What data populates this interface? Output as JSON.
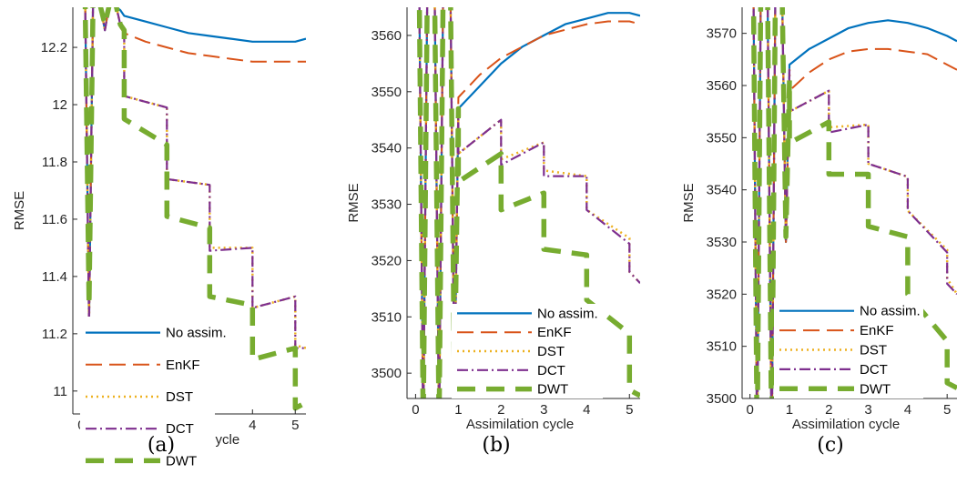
{
  "series_styles": {
    "No assim.": {
      "color": "#0072BD",
      "dash": "",
      "width": 2.2
    },
    "EnKF": {
      "color": "#D95319",
      "dash": "18 8",
      "width": 2
    },
    "DST": {
      "color": "#EDB120",
      "dash": "2 4",
      "width": 2.5
    },
    "DCT": {
      "color": "#7E2F8E",
      "dash": "12 4 2 4",
      "width": 2.2
    },
    "DWT": {
      "color": "#77AC30",
      "dash": "20 12",
      "width": 5.5
    }
  },
  "chart_data": [
    {
      "type": "line",
      "panel_label": "(a)",
      "xlabel": "Assimilation cycle",
      "ylabel": "RMSE",
      "xlim": [
        -0.2,
        5.25
      ],
      "ylim": [
        10.92,
        12.34
      ],
      "xticks": [
        0,
        1,
        2,
        3,
        4,
        5
      ],
      "yticks": [
        11,
        11.2,
        11.4,
        11.6,
        11.8,
        12,
        12.2
      ],
      "ytick_labels": [
        "11",
        "11.2",
        "11.4",
        "11.6",
        "11.8",
        "12",
        "12.2"
      ],
      "legend": "bottom-left",
      "series": [
        {
          "name": "No assim.",
          "x": [
            0,
            0.09,
            0.18,
            0.27,
            0.36,
            0.45,
            0.55,
            0.64,
            0.73,
            0.82,
            0.91,
            1.0,
            1.5,
            2.0,
            2.5,
            3.0,
            3.5,
            4.0,
            4.5,
            5.0,
            5.25
          ],
          "y": [
            12.6,
            12.34,
            11.24,
            12.34,
            12.6,
            12.34,
            12.26,
            12.34,
            12.6,
            12.34,
            12.33,
            12.31,
            12.29,
            12.27,
            12.25,
            12.24,
            12.23,
            12.22,
            12.22,
            12.22,
            12.23
          ]
        },
        {
          "name": "EnKF",
          "x": [
            0,
            0.09,
            0.18,
            0.27,
            0.36,
            0.45,
            0.55,
            0.64,
            0.73,
            0.82,
            0.91,
            1.0,
            1.5,
            2.0,
            2.5,
            3.0,
            3.5,
            4.0,
            4.5,
            5.0,
            5.25
          ],
          "y": [
            12.6,
            12.34,
            11.24,
            12.34,
            12.6,
            12.34,
            12.26,
            12.34,
            12.6,
            12.34,
            12.27,
            12.25,
            12.22,
            12.2,
            12.18,
            12.17,
            12.16,
            12.15,
            12.15,
            12.15,
            12.15
          ]
        },
        {
          "name": "DST",
          "x": [
            0,
            0.09,
            0.18,
            0.27,
            0.36,
            0.45,
            0.55,
            0.64,
            0.73,
            0.82,
            0.91,
            1.0,
            1.0,
            2.0,
            2.0,
            3.0,
            3.0,
            4.0,
            4.0,
            5.0,
            5.0,
            5.25
          ],
          "y": [
            12.6,
            12.34,
            11.24,
            12.34,
            12.6,
            12.34,
            12.26,
            12.34,
            12.6,
            12.34,
            12.28,
            12.26,
            12.03,
            11.99,
            11.74,
            11.72,
            11.5,
            11.5,
            11.29,
            11.33,
            11.16,
            11.15
          ]
        },
        {
          "name": "DCT",
          "x": [
            0,
            0.09,
            0.18,
            0.27,
            0.36,
            0.45,
            0.55,
            0.64,
            0.73,
            0.82,
            0.91,
            1.0,
            1.0,
            2.0,
            2.0,
            3.0,
            3.0,
            4.0,
            4.0,
            5.0,
            5.0,
            5.25
          ],
          "y": [
            12.6,
            12.34,
            11.23,
            12.34,
            12.6,
            12.34,
            12.26,
            12.34,
            12.6,
            12.34,
            12.28,
            12.26,
            12.03,
            11.99,
            11.74,
            11.72,
            11.49,
            11.5,
            11.29,
            11.33,
            11.15,
            11.15
          ]
        },
        {
          "name": "DWT",
          "x": [
            0,
            0.09,
            0.18,
            0.27,
            0.36,
            0.45,
            0.55,
            0.64,
            0.73,
            0.82,
            0.91,
            1.0,
            1.0,
            2.0,
            2.0,
            3.0,
            3.0,
            4.0,
            4.0,
            5.0,
            5.0,
            5.25
          ],
          "y": [
            12.6,
            12.34,
            11.3,
            12.34,
            12.6,
            12.34,
            12.28,
            12.34,
            12.6,
            12.34,
            12.28,
            12.26,
            11.95,
            11.86,
            11.61,
            11.57,
            11.33,
            11.3,
            11.11,
            11.15,
            10.94,
            10.96
          ]
        }
      ]
    },
    {
      "type": "line",
      "panel_label": "(b)",
      "xlabel": "Assimilation cycle",
      "ylabel": "RMSE",
      "xlim": [
        -0.2,
        5.25
      ],
      "ylim": [
        3495.5,
        3565
      ],
      "xticks": [
        0,
        1,
        2,
        3,
        4,
        5
      ],
      "yticks": [
        3500,
        3510,
        3520,
        3530,
        3540,
        3550,
        3560
      ],
      "ytick_labels": [
        "3500",
        "3510",
        "3520",
        "3530",
        "3540",
        "3550",
        "3560"
      ],
      "legend": "bottom-right",
      "series": [
        {
          "name": "No assim.",
          "x": [
            0,
            0.09,
            0.18,
            0.27,
            0.36,
            0.45,
            0.55,
            0.64,
            0.73,
            0.82,
            0.91,
            1.0,
            1.5,
            2.0,
            2.5,
            3.0,
            3.5,
            4.0,
            4.5,
            5.0,
            5.25
          ],
          "y": [
            3580,
            3565,
            3490,
            3565,
            3580,
            3565,
            3490,
            3565,
            3580,
            3565,
            3496,
            3547,
            3551,
            3555,
            3558,
            3560,
            3562,
            3563,
            3564,
            3564,
            3563.5
          ]
        },
        {
          "name": "EnKF",
          "x": [
            0,
            0.09,
            0.18,
            0.27,
            0.36,
            0.45,
            0.55,
            0.64,
            0.73,
            0.82,
            0.91,
            1.0,
            1.5,
            2.0,
            2.5,
            3.0,
            3.5,
            4.0,
            4.5,
            5.0,
            5.25
          ],
          "y": [
            3580,
            3565,
            3490,
            3565,
            3580,
            3565,
            3490,
            3565,
            3580,
            3565,
            3496,
            3549,
            3553,
            3556,
            3558,
            3560,
            3561,
            3562,
            3562.5,
            3562.5,
            3562
          ]
        },
        {
          "name": "DST",
          "x": [
            0,
            0.09,
            0.18,
            0.27,
            0.36,
            0.45,
            0.55,
            0.64,
            0.73,
            0.82,
            0.91,
            1.0,
            1.0,
            2.0,
            2.0,
            3.0,
            3.0,
            4.0,
            4.0,
            5.0,
            5.0,
            5.25
          ],
          "y": [
            3580,
            3565,
            3490,
            3565,
            3580,
            3565,
            3490,
            3565,
            3580,
            3565,
            3496,
            3547,
            3539,
            3545,
            3538,
            3541,
            3536,
            3535,
            3529,
            3524,
            3518,
            3516
          ]
        },
        {
          "name": "DCT",
          "x": [
            0,
            0.09,
            0.18,
            0.27,
            0.36,
            0.45,
            0.55,
            0.64,
            0.73,
            0.82,
            0.91,
            1.0,
            1.0,
            2.0,
            2.0,
            3.0,
            3.0,
            4.0,
            4.0,
            5.0,
            5.0,
            5.25
          ],
          "y": [
            3580,
            3565,
            3490,
            3565,
            3580,
            3565,
            3490,
            3565,
            3580,
            3565,
            3496,
            3547,
            3539,
            3545,
            3537,
            3541,
            3535,
            3535,
            3529,
            3523,
            3518,
            3516
          ]
        },
        {
          "name": "DWT",
          "x": [
            0,
            0.09,
            0.18,
            0.27,
            0.36,
            0.45,
            0.55,
            0.64,
            0.73,
            0.82,
            0.91,
            1.0,
            1.0,
            2.0,
            2.0,
            3.0,
            3.0,
            4.0,
            4.0,
            5.0,
            5.0,
            5.25
          ],
          "y": [
            3580,
            3565,
            3490,
            3565,
            3580,
            3565,
            3490,
            3565,
            3580,
            3565,
            3497,
            3547,
            3534,
            3539,
            3529,
            3532,
            3522,
            3521,
            3513,
            3507,
            3497,
            3496
          ]
        }
      ]
    },
    {
      "type": "line",
      "panel_label": "(c)",
      "xlabel": "Assimilation cycle",
      "ylabel": "RMSE",
      "xlim": [
        -0.2,
        5.25
      ],
      "ylim": [
        3500,
        3575
      ],
      "xticks": [
        0,
        1,
        2,
        3,
        4,
        5
      ],
      "yticks": [
        3500,
        3510,
        3520,
        3530,
        3540,
        3550,
        3560,
        3570
      ],
      "ytick_labels": [
        "3500",
        "3510",
        "3520",
        "3530",
        "3540",
        "3550",
        "3560",
        "3570"
      ],
      "legend": "bottom-right",
      "series": [
        {
          "name": "No assim.",
          "x": [
            0,
            0.09,
            0.18,
            0.27,
            0.36,
            0.45,
            0.55,
            0.64,
            0.73,
            0.82,
            0.91,
            1.0,
            1.5,
            2.0,
            2.5,
            3.0,
            3.5,
            4.0,
            4.5,
            5.0,
            5.25
          ],
          "y": [
            3590,
            3575,
            3490,
            3575,
            3590,
            3575,
            3490,
            3575,
            3590,
            3575,
            3530,
            3564,
            3567,
            3569,
            3571,
            3572,
            3572.5,
            3572,
            3571,
            3569.5,
            3568.5
          ]
        },
        {
          "name": "EnKF",
          "x": [
            0,
            0.09,
            0.18,
            0.27,
            0.36,
            0.45,
            0.55,
            0.64,
            0.73,
            0.82,
            0.91,
            1.0,
            1.5,
            2.0,
            2.5,
            3.0,
            3.5,
            4.0,
            4.5,
            5.0,
            5.25
          ],
          "y": [
            3590,
            3575,
            3490,
            3575,
            3590,
            3575,
            3490,
            3575,
            3590,
            3575,
            3530,
            3559,
            3562.5,
            3565,
            3566.5,
            3567,
            3567,
            3566.5,
            3566,
            3564,
            3563
          ]
        },
        {
          "name": "DST",
          "x": [
            0,
            0.09,
            0.18,
            0.27,
            0.36,
            0.45,
            0.55,
            0.64,
            0.73,
            0.82,
            0.91,
            1.0,
            1.0,
            2.0,
            2.0,
            3.0,
            3.0,
            4.0,
            4.0,
            5.0,
            5.0,
            5.25
          ],
          "y": [
            3590,
            3575,
            3490,
            3575,
            3590,
            3575,
            3490,
            3575,
            3590,
            3575,
            3530,
            3563,
            3555,
            3559,
            3552,
            3552.5,
            3545,
            3542.5,
            3536,
            3528.5,
            3523,
            3520
          ]
        },
        {
          "name": "DCT",
          "x": [
            0,
            0.09,
            0.18,
            0.27,
            0.36,
            0.45,
            0.55,
            0.64,
            0.73,
            0.82,
            0.91,
            1.0,
            1.0,
            2.0,
            2.0,
            3.0,
            3.0,
            4.0,
            4.0,
            5.0,
            5.0,
            5.25
          ],
          "y": [
            3590,
            3575,
            3490,
            3575,
            3590,
            3575,
            3490,
            3575,
            3590,
            3575,
            3530,
            3563,
            3555,
            3559,
            3551,
            3552.5,
            3545,
            3542.5,
            3536,
            3528,
            3522,
            3520
          ]
        },
        {
          "name": "DWT",
          "x": [
            0,
            0.09,
            0.18,
            0.27,
            0.36,
            0.45,
            0.55,
            0.64,
            0.73,
            0.82,
            0.91,
            1.0,
            1.0,
            2.0,
            2.0,
            3.0,
            3.0,
            4.0,
            4.0,
            5.0,
            5.0,
            5.25
          ],
          "y": [
            3590,
            3575,
            3490,
            3575,
            3590,
            3575,
            3490,
            3575,
            3590,
            3575,
            3531,
            3561,
            3549,
            3553,
            3543,
            3543,
            3533,
            3531,
            3520,
            3511,
            3503,
            3502
          ]
        }
      ]
    }
  ]
}
